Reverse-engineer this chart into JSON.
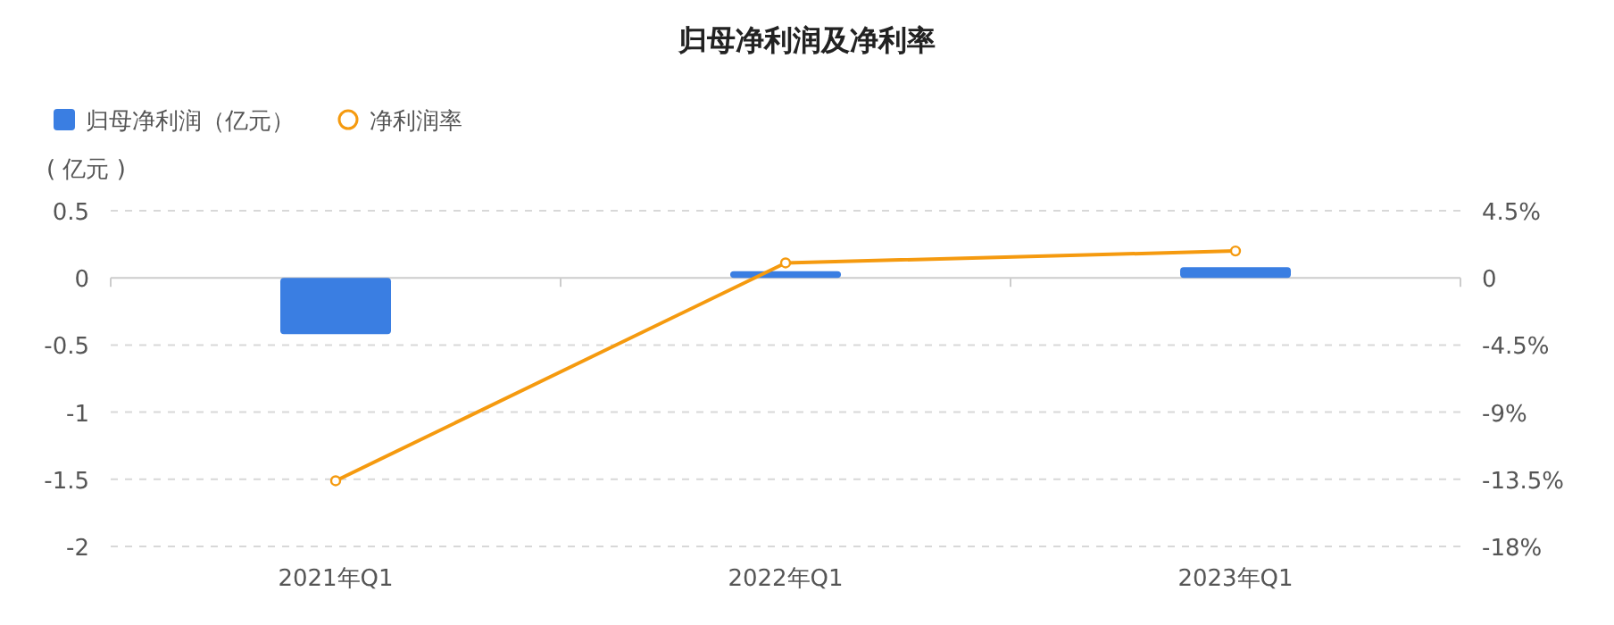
{
  "chart_data": {
    "type": "bar",
    "title": "归母净利润及净利率",
    "categories": [
      "2021年Q1",
      "2022年Q1",
      "2023年Q1"
    ],
    "series": [
      {
        "name": "归母净利润（亿元）",
        "color": "#3a7ee2",
        "values": [
          -0.42,
          0.05,
          0.08
        ]
      },
      {
        "name": "净利润率",
        "type": "line",
        "axis": "y2",
        "color": "#f59a0f",
        "marker": "circle",
        "values": [
          -13.6,
          1.0,
          1.8
        ]
      }
    ],
    "ylabel": "( 亿元 )",
    "ylim": [
      -2,
      0.5
    ],
    "yticks": [
      -2,
      -1.5,
      -1,
      -0.5,
      0,
      0.5
    ],
    "y2lim": [
      -18,
      4.5
    ],
    "y2ticks": [
      {
        "value": -18,
        "label": "-18%"
      },
      {
        "value": -13.5,
        "label": "-13.5%"
      },
      {
        "value": -9,
        "label": "-9%"
      },
      {
        "value": -4.5,
        "label": "-4.5%"
      },
      0,
      {
        "value": 4.5,
        "label": "4.5%"
      }
    ],
    "grid": "y",
    "legend": "top left"
  }
}
